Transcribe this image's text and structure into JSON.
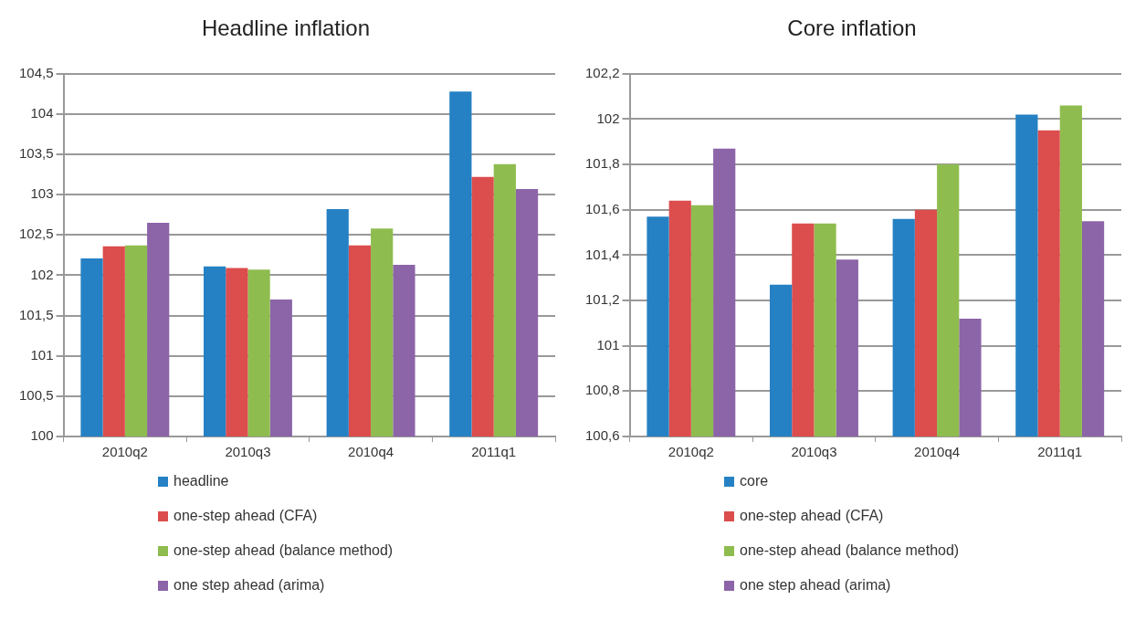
{
  "chart_data": [
    {
      "type": "bar",
      "title": "Headline inflation",
      "categories": [
        "2010q2",
        "2010q3",
        "2010q4",
        "2011q1"
      ],
      "series": [
        {
          "name": "headline",
          "color": "#2581c4",
          "values": [
            102.21,
            102.11,
            102.82,
            104.28
          ]
        },
        {
          "name": "one-step ahead (CFA)",
          "color": "#dc4d4d",
          "values": [
            102.36,
            102.09,
            102.37,
            103.22
          ]
        },
        {
          "name": "one-step ahead (balance method)",
          "color": "#8fbc4f",
          "values": [
            102.37,
            102.07,
            102.58,
            103.38
          ]
        },
        {
          "name": "one step ahead (arima)",
          "color": "#8c64a8",
          "values": [
            102.65,
            101.7,
            102.13,
            103.07
          ]
        }
      ],
      "ylim": [
        100,
        104.5
      ],
      "yticks": [
        100,
        {
          "value": 100.5,
          "label": "100,5"
        },
        101,
        {
          "value": 101.5,
          "label": "101,5"
        },
        102,
        {
          "value": 102.5,
          "label": "102,5"
        },
        103,
        {
          "value": 103.5,
          "label": "103,5"
        },
        104,
        {
          "value": 104.5,
          "label": "104,5"
        }
      ],
      "grid": "y",
      "legend": "bottom"
    },
    {
      "type": "bar",
      "title": "Core inflation",
      "categories": [
        "2010q2",
        "2010q3",
        "2010q4",
        "2011q1"
      ],
      "series": [
        {
          "name": "core",
          "color": "#2581c4",
          "values": [
            101.57,
            101.27,
            101.56,
            102.02
          ]
        },
        {
          "name": "one-step ahead (CFA)",
          "color": "#dc4d4d",
          "values": [
            101.64,
            101.54,
            101.6,
            101.95
          ]
        },
        {
          "name": "one-step ahead (balance method)",
          "color": "#8fbc4f",
          "values": [
            101.62,
            101.54,
            101.8,
            102.06
          ]
        },
        {
          "name": "one step ahead (arima)",
          "color": "#8c64a8",
          "values": [
            101.87,
            101.38,
            101.12,
            101.55
          ]
        }
      ],
      "ylim": [
        100.6,
        102.2
      ],
      "yticks": [
        {
          "value": 100.6,
          "label": "100,6"
        },
        {
          "value": 100.8,
          "label": "100,8"
        },
        101,
        {
          "value": 101.2,
          "label": "101,2"
        },
        {
          "value": 101.4,
          "label": "101,4"
        },
        {
          "value": 101.6,
          "label": "101,6"
        },
        {
          "value": 101.8,
          "label": "101,8"
        },
        102,
        {
          "value": 102.2,
          "label": "102,2"
        }
      ],
      "grid": "y",
      "legend": "bottom"
    }
  ]
}
